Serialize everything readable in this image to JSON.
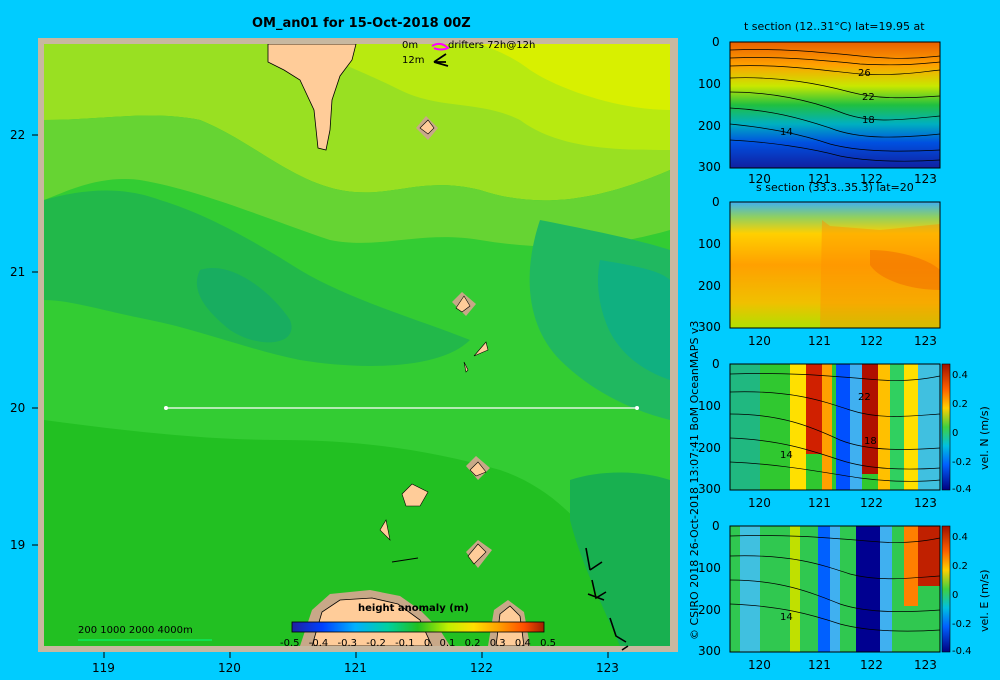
{
  "main_map": {
    "title": "OM_an01 for 15-Oct-2018 00Z",
    "x_ticks": [
      "119",
      "120",
      "121",
      "122",
      "123"
    ],
    "y_ticks": [
      "22",
      "21",
      "20",
      "19"
    ],
    "legend": {
      "current_0m": "0m",
      "current_12m": "12m",
      "drifters": "drifters 72h@12h"
    },
    "depth_scale": "200  1000  2000  4000m",
    "colorbar": {
      "label": "height anomaly (m)",
      "ticks": [
        "-0.5",
        "-0.4",
        "-0.3",
        "-0.2",
        "-0.1",
        "0",
        "0.1",
        "0.2",
        "0.3",
        "0.4",
        "0.5"
      ]
    }
  },
  "sections": [
    {
      "title": "t section (12..31°C) lat=19.95 at",
      "y_ticks": [
        "0",
        "100",
        "200",
        "300"
      ],
      "x_ticks": [
        "120",
        "121",
        "122",
        "123"
      ],
      "contour_labels": [
        "26",
        "22",
        "18",
        "14"
      ]
    },
    {
      "title": "s section (33.3..35.3) lat=20",
      "y_ticks": [
        "0",
        "100",
        "200",
        "300"
      ],
      "x_ticks": [
        "120",
        "121",
        "122",
        "123"
      ]
    },
    {
      "y_ticks": [
        "0",
        "100",
        "200",
        "300"
      ],
      "x_ticks": [
        "120",
        "121",
        "122",
        "123"
      ],
      "contour_labels": [
        "22",
        "18",
        "14"
      ],
      "colorbar_label": "vel. N (m/s)",
      "colorbar_ticks": [
        "0.4",
        "0.2",
        "0",
        "-0.2",
        "-0.4"
      ]
    },
    {
      "y_ticks": [
        "0",
        "100",
        "200",
        "300"
      ],
      "x_ticks": [
        "120",
        "121",
        "122",
        "123"
      ],
      "contour_labels": [
        "14"
      ],
      "colorbar_label": "vel. E (m/s)",
      "colorbar_ticks": [
        "0.4",
        "0.2",
        "0",
        "-0.2",
        "-0.4"
      ]
    }
  ],
  "credit": "© CSIRO 2018   26-Oct-2018 13:07:41 BoM OceanMAPS v3",
  "colors": {
    "background": "#00ccff",
    "land": "#ffcc99",
    "shelf": "#c8a888",
    "ssh_low": "#00a050",
    "ssh_high": "#e8f000"
  }
}
